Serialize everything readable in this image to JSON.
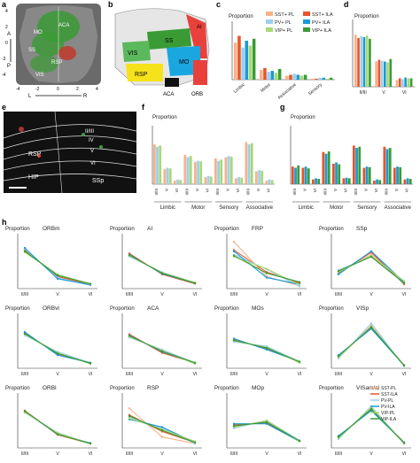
{
  "colors": {
    "sst_pl": "#f7b28a",
    "sst_ila": "#e8542a",
    "pv_pl": "#9ad0ee",
    "pv_ila": "#1a9ad6",
    "vip_pl": "#a8d877",
    "vip_ila": "#3a9b35"
  },
  "panel_a": {
    "letter": "a",
    "regions": [
      "MO",
      "ACA",
      "SS",
      "RSP",
      "VIS"
    ],
    "axis_ticks": [
      "4",
      "2",
      "0",
      "2",
      "4"
    ],
    "x_axis": [
      "-4",
      "-2",
      "0",
      "2",
      "4"
    ],
    "y_labels": [
      "4",
      "2",
      "0",
      "-2",
      "-4"
    ],
    "lateral": "L",
    "right": "R",
    "anterior": "A",
    "posterior": "P"
  },
  "panel_b": {
    "letter": "b",
    "regions": [
      "AI",
      "SS",
      "VIS",
      "MO",
      "RSP",
      "ACA",
      "ORB"
    ],
    "region_colors": [
      "#e8413c",
      "#3a9b35",
      "#5cb85c",
      "#1aa7e0",
      "#f5e21a",
      "#111111",
      "#e8413c"
    ]
  },
  "panel_c": {
    "letter": "c",
    "ylabel": "Proportion",
    "legend": [
      "SST+ PL",
      "SST+ ILA",
      "PV+ PL",
      "PV+ ILA",
      "VIP+ PL",
      "VIP+ ILA"
    ],
    "categories": [
      "Limbic",
      "Motor",
      "Associative",
      "Sensory"
    ]
  },
  "panel_d": {
    "letter": "d",
    "ylabel": "Proportion",
    "categories": [
      "II/III",
      "V",
      "VI"
    ]
  },
  "panel_e": {
    "letter": "e",
    "labels": [
      "RSP",
      "II/III",
      "IV",
      "V",
      "VI",
      "HIP",
      "SSp"
    ]
  },
  "panel_f": {
    "letter": "f",
    "ylabel": "Proportion",
    "layers": [
      "II/III",
      "V",
      "VI"
    ],
    "groups": [
      "Limbic",
      "Motor",
      "Sensory",
      "Associative"
    ]
  },
  "panel_g": {
    "letter": "g",
    "ylabel": "Proportion",
    "layers": [
      "II/III",
      "V",
      "VI"
    ],
    "groups": [
      "Limbic",
      "Motor",
      "Sensory",
      "Associative"
    ]
  },
  "panel_h": {
    "letter": "h",
    "ylabel": "Proportion",
    "xticks": [
      "II/III",
      "V",
      "VI"
    ],
    "legend": [
      "SST-PL",
      "SST-ILA",
      "PV-PL",
      "PV-ILA",
      "VIP-PL",
      "VIP-ILA"
    ],
    "subplots": [
      {
        "title": "ORBm"
      },
      {
        "title": "AI"
      },
      {
        "title": "FRP"
      },
      {
        "title": "SSp"
      },
      {
        "title": "ORBvl"
      },
      {
        "title": "ACA"
      },
      {
        "title": "MOs"
      },
      {
        "title": "VISp"
      },
      {
        "title": "ORBl"
      },
      {
        "title": "RSP"
      },
      {
        "title": "MOp"
      },
      {
        "title": "VISam/al"
      }
    ]
  },
  "chart_data": [
    {
      "type": "bar",
      "panel": "c",
      "categories": [
        "Limbic",
        "Motor",
        "Associative",
        "Sensory"
      ],
      "series": [
        {
          "name": "SST+ PL",
          "values": [
            0.38,
            0.1,
            0.04,
            0.01
          ]
        },
        {
          "name": "SST+ ILA",
          "values": [
            0.45,
            0.12,
            0.05,
            0.01
          ]
        },
        {
          "name": "PV+ PL",
          "values": [
            0.33,
            0.08,
            0.06,
            0.02
          ]
        },
        {
          "name": "PV+ ILA",
          "values": [
            0.4,
            0.09,
            0.05,
            0.02
          ]
        },
        {
          "name": "VIP+ PL",
          "values": [
            0.35,
            0.07,
            0.04,
            0.01
          ]
        },
        {
          "name": "VIP+ ILA",
          "values": [
            0.42,
            0.11,
            0.05,
            0.02
          ]
        }
      ],
      "ylim": [
        0,
        0.6
      ]
    },
    {
      "type": "bar",
      "panel": "d",
      "categories": [
        "II/III",
        "V",
        "VI"
      ],
      "series": [
        {
          "name": "SST+ PL",
          "values": [
            0.62,
            0.3,
            0.08
          ]
        },
        {
          "name": "SST+ ILA",
          "values": [
            0.58,
            0.32,
            0.1
          ]
        },
        {
          "name": "PV+ PL",
          "values": [
            0.6,
            0.31,
            0.09
          ]
        },
        {
          "name": "PV+ ILA",
          "values": [
            0.59,
            0.3,
            0.11
          ]
        },
        {
          "name": "VIP+ PL",
          "values": [
            0.61,
            0.29,
            0.1
          ]
        },
        {
          "name": "VIP+ ILA",
          "values": [
            0.57,
            0.33,
            0.1
          ]
        }
      ],
      "ylim": [
        0,
        0.8
      ]
    },
    {
      "type": "bar",
      "panel": "f",
      "categories": [
        "II/III",
        "V",
        "VI",
        "II/III",
        "V",
        "VI",
        "II/III",
        "V",
        "VI",
        "II/III",
        "V",
        "VI"
      ],
      "series": [
        {
          "name": "SST+ PL",
          "values": [
            0.68,
            0.26,
            0.06,
            0.5,
            0.38,
            0.12,
            0.44,
            0.46,
            0.1,
            0.72,
            0.22,
            0.06
          ]
        },
        {
          "name": "PV+ PL",
          "values": [
            0.64,
            0.28,
            0.08,
            0.46,
            0.4,
            0.14,
            0.4,
            0.48,
            0.12,
            0.68,
            0.24,
            0.08
          ]
        },
        {
          "name": "VIP+ PL",
          "values": [
            0.66,
            0.27,
            0.07,
            0.48,
            0.39,
            0.13,
            0.42,
            0.47,
            0.11,
            0.7,
            0.23,
            0.07
          ]
        }
      ],
      "ylim": [
        0,
        1.0
      ]
    },
    {
      "type": "bar",
      "panel": "g",
      "categories": [
        "II/III",
        "V",
        "VI",
        "II/III",
        "V",
        "VI",
        "II/III",
        "V",
        "VI",
        "II/III",
        "V",
        "VI"
      ],
      "series": [
        {
          "name": "SST+ ILA",
          "values": [
            0.3,
            0.28,
            0.08,
            0.55,
            0.35,
            0.1,
            0.66,
            0.28,
            0.06,
            0.64,
            0.28,
            0.08
          ]
        },
        {
          "name": "PV+ ILA",
          "values": [
            0.28,
            0.3,
            0.1,
            0.52,
            0.37,
            0.11,
            0.62,
            0.3,
            0.08,
            0.6,
            0.3,
            0.1
          ]
        },
        {
          "name": "VIP+ ILA",
          "values": [
            0.32,
            0.27,
            0.09,
            0.56,
            0.34,
            0.1,
            0.64,
            0.29,
            0.07,
            0.62,
            0.29,
            0.09
          ]
        }
      ],
      "ylim": [
        0,
        1.0
      ]
    },
    {
      "type": "line",
      "panel": "h",
      "x": [
        "II/III",
        "V",
        "VI"
      ],
      "ylim": [
        0,
        1.0
      ],
      "subplots": [
        {
          "title": "ORBm",
          "series": [
            [
              0.68,
              0.25,
              0.07
            ],
            [
              0.7,
              0.22,
              0.08
            ],
            [
              0.72,
              0.2,
              0.06
            ],
            [
              0.74,
              0.18,
              0.07
            ],
            [
              0.66,
              0.26,
              0.08
            ],
            [
              0.68,
              0.24,
              0.09
            ]
          ]
        },
        {
          "title": "AI",
          "series": [
            [
              0.6,
              0.28,
              0.1
            ],
            [
              0.64,
              0.26,
              0.09
            ],
            [
              0.58,
              0.3,
              0.11
            ],
            [
              0.62,
              0.27,
              0.1
            ],
            [
              0.6,
              0.29,
              0.11
            ],
            [
              0.61,
              0.28,
              0.1
            ]
          ]
        },
        {
          "title": "FRP",
          "series": [
            [
              0.85,
              0.22,
              0.05
            ],
            [
              0.7,
              0.3,
              0.1
            ],
            [
              0.62,
              0.35,
              0.04
            ],
            [
              0.68,
              0.2,
              0.08
            ],
            [
              0.58,
              0.36,
              0.07
            ],
            [
              0.6,
              0.28,
              0.12
            ]
          ]
        },
        {
          "title": "SSp",
          "series": [
            [
              0.3,
              0.62,
              0.1
            ],
            [
              0.28,
              0.66,
              0.08
            ],
            [
              0.34,
              0.58,
              0.1
            ],
            [
              0.26,
              0.68,
              0.12
            ],
            [
              0.3,
              0.6,
              0.14
            ],
            [
              0.32,
              0.58,
              0.1
            ]
          ]
        },
        {
          "title": "ORBvl",
          "series": [
            [
              0.62,
              0.28,
              0.1
            ],
            [
              0.64,
              0.26,
              0.1
            ],
            [
              0.6,
              0.3,
              0.1
            ],
            [
              0.66,
              0.24,
              0.1
            ],
            [
              0.62,
              0.28,
              0.08
            ],
            [
              0.63,
              0.27,
              0.09
            ]
          ]
        },
        {
          "title": "ACA",
          "series": [
            [
              0.58,
              0.32,
              0.1
            ],
            [
              0.62,
              0.28,
              0.1
            ],
            [
              0.56,
              0.34,
              0.1
            ],
            [
              0.6,
              0.3,
              0.1
            ],
            [
              0.58,
              0.32,
              0.08
            ],
            [
              0.59,
              0.31,
              0.1
            ]
          ]
        },
        {
          "title": "MOs",
          "series": [
            [
              0.5,
              0.38,
              0.12
            ],
            [
              0.52,
              0.36,
              0.12
            ],
            [
              0.48,
              0.4,
              0.12
            ],
            [
              0.54,
              0.34,
              0.12
            ],
            [
              0.5,
              0.38,
              0.1
            ],
            [
              0.51,
              0.37,
              0.12
            ]
          ]
        },
        {
          "title": "VISp",
          "series": [
            [
              0.2,
              0.78,
              0.05
            ],
            [
              0.22,
              0.74,
              0.06
            ],
            [
              0.18,
              0.82,
              0.04
            ],
            [
              0.24,
              0.72,
              0.05
            ],
            [
              0.2,
              0.76,
              0.06
            ],
            [
              0.22,
              0.75,
              0.05
            ]
          ]
        },
        {
          "title": "ORBl",
          "series": [
            [
              0.66,
              0.26,
              0.08
            ],
            [
              0.68,
              0.24,
              0.08
            ],
            [
              0.64,
              0.28,
              0.08
            ],
            [
              0.66,
              0.25,
              0.09
            ],
            [
              0.65,
              0.27,
              0.08
            ],
            [
              0.67,
              0.25,
              0.08
            ]
          ]
        },
        {
          "title": "RSP",
          "series": [
            [
              0.72,
              0.2,
              0.08
            ],
            [
              0.6,
              0.3,
              0.1
            ],
            [
              0.56,
              0.36,
              0.08
            ],
            [
              0.52,
              0.38,
              0.1
            ],
            [
              0.54,
              0.34,
              0.12
            ],
            [
              0.58,
              0.32,
              0.1
            ]
          ]
        },
        {
          "title": "MOp",
          "series": [
            [
              0.4,
              0.48,
              0.12
            ],
            [
              0.42,
              0.46,
              0.12
            ],
            [
              0.36,
              0.5,
              0.14
            ],
            [
              0.44,
              0.44,
              0.12
            ],
            [
              0.38,
              0.5,
              0.12
            ],
            [
              0.4,
              0.47,
              0.13
            ]
          ]
        },
        {
          "title": "VISam/al",
          "series": [
            [
              0.18,
              0.72,
              0.1
            ],
            [
              0.2,
              0.7,
              0.1
            ],
            [
              0.16,
              0.76,
              0.08
            ],
            [
              0.22,
              0.68,
              0.1
            ],
            [
              0.18,
              0.74,
              0.08
            ],
            [
              0.2,
              0.71,
              0.09
            ]
          ]
        }
      ]
    }
  ]
}
